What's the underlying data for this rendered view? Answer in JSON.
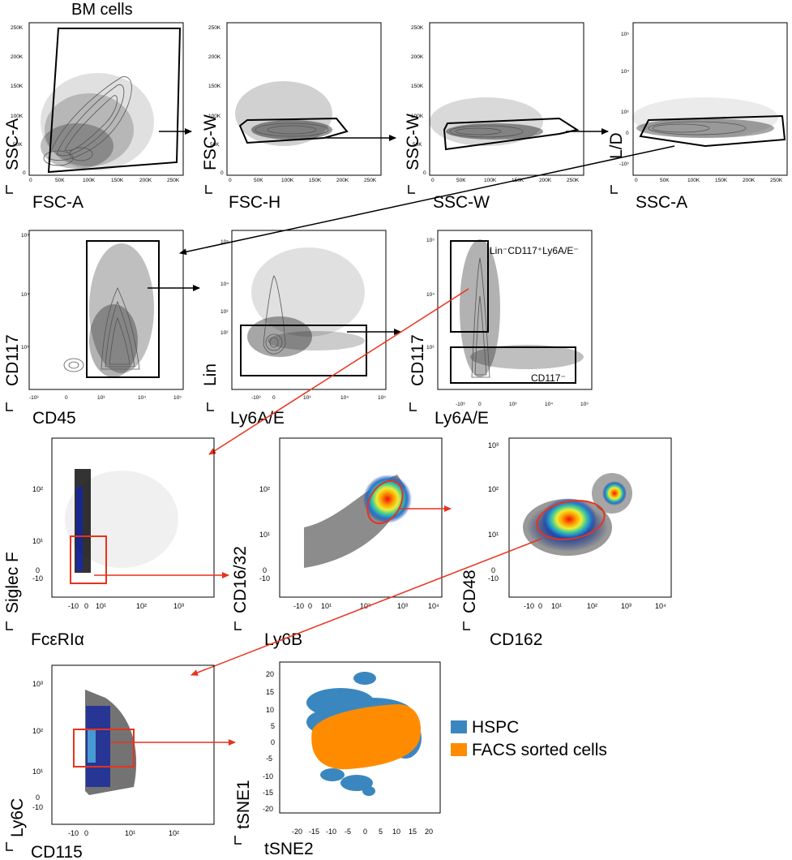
{
  "title": "BM cells",
  "row1": [
    {
      "x": "FSC-A",
      "y": "SSC-A",
      "xticks": [
        "0",
        "50K",
        "100K",
        "150K",
        "200K",
        "250K"
      ],
      "yticks": [
        "0",
        "50K",
        "100K",
        "150K",
        "200K",
        "250K"
      ]
    },
    {
      "x": "FSC-H",
      "y": "FSC-W",
      "xticks": [
        "0",
        "50K",
        "100K",
        "150K",
        "200K",
        "250K"
      ],
      "yticks": [
        "0",
        "50K",
        "100K",
        "150K",
        "200K",
        "250K"
      ]
    },
    {
      "x": "SSC-W",
      "y": "SSC-W",
      "xticks": [
        "0",
        "50K",
        "100K",
        "150K",
        "200K",
        "250K"
      ],
      "yticks": [
        "0",
        "50K",
        "100K",
        "150K",
        "200K",
        "250K"
      ]
    },
    {
      "x": "SSC-A",
      "y": "L/D",
      "xticks": [
        "0",
        "50K",
        "100K",
        "150K",
        "200K",
        "250K"
      ],
      "yticks": [
        "-10³",
        "0",
        "10³",
        "10⁴",
        "10⁵"
      ]
    }
  ],
  "row2": [
    {
      "x": "CD45",
      "y": "CD117",
      "xticks": [
        "-10³",
        "0",
        "10³",
        "10⁴",
        "10⁵"
      ],
      "yticks": [
        "10³",
        "10⁴",
        "10⁵"
      ]
    },
    {
      "x": "Ly6A/E",
      "y": "Lin",
      "xticks": [
        "-10³",
        "0",
        "10³",
        "10⁴",
        "10⁵"
      ],
      "yticks": [
        "10²",
        "10³",
        "10⁴",
        "10⁵"
      ]
    },
    {
      "x": "Ly6A/E",
      "y": "CD117",
      "xticks": [
        "-10³",
        "0",
        "10³",
        "10⁴",
        "10⁵"
      ],
      "yticks": [
        "10³",
        "10⁴",
        "10⁵"
      ]
    }
  ],
  "gates": {
    "lin_neg": "Lin⁻CD117⁺Ly6A/E⁻",
    "cd117_neg": "CD117⁻"
  },
  "row3": [
    {
      "x": "FcεRIα",
      "y": "Siglec F",
      "xticks": [
        "-10",
        "0",
        "10¹",
        "10²",
        "10³"
      ],
      "yticks": [
        "-10",
        "0",
        "10¹",
        "10²"
      ]
    },
    {
      "x": "Ly6B",
      "y": "CD16/32",
      "xticks": [
        "-10",
        "0",
        "10¹",
        "10²",
        "10³",
        "10⁴"
      ],
      "yticks": [
        "-10",
        "0",
        "10¹",
        "10²"
      ]
    },
    {
      "x": "CD162",
      "y": "CD48",
      "xticks": [
        "-10",
        "0",
        "10¹",
        "10²",
        "10³",
        "10⁴"
      ],
      "yticks": [
        "-10",
        "0",
        "10¹",
        "10²",
        "10³"
      ]
    }
  ],
  "row4": {
    "x": "CD115",
    "y": "Ly6C",
    "xticks": [
      "-10",
      "0",
      "10¹",
      "10²"
    ],
    "yticks": [
      "-10",
      "0",
      "10¹",
      "10²",
      "10³"
    ]
  },
  "tsne": {
    "x": "tSNE2",
    "y": "tSNE1",
    "xticks": [
      "-20",
      "-15",
      "-10",
      "-5",
      "0",
      "5",
      "10",
      "15",
      "20"
    ],
    "yticks": [
      "-20",
      "-15",
      "-10",
      "-5",
      "0",
      "5",
      "10",
      "15",
      "20"
    ],
    "legend": [
      {
        "label": "HSPC",
        "color": "#3a87c0"
      },
      {
        "label": "FACS sorted cells",
        "color": "#ff8c00"
      }
    ]
  },
  "colors": {
    "gate_black": "#000000",
    "gate_red": "#e8321e",
    "hspc": "#3a87c0",
    "facs": "#ff8c00"
  }
}
